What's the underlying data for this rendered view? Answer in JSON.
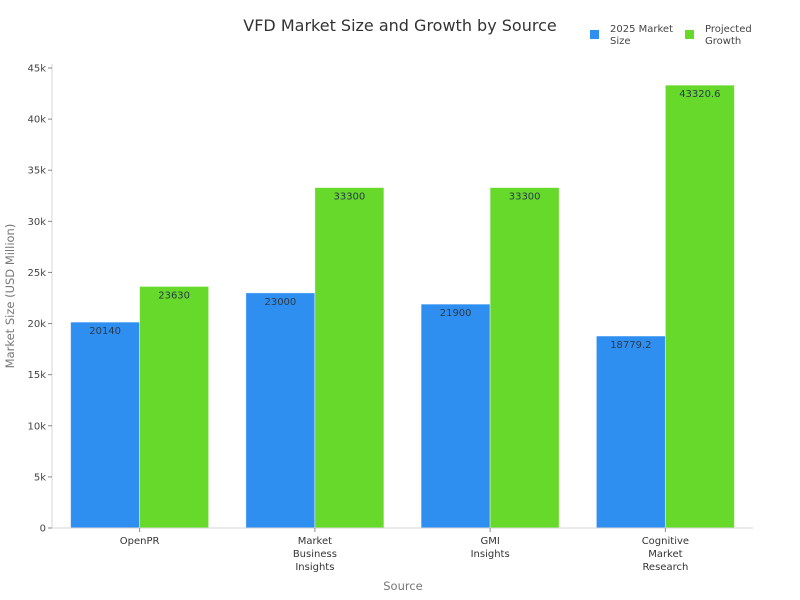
{
  "chart_data": {
    "type": "bar",
    "title": "VFD Market Size and Growth by Source",
    "xlabel": "Source",
    "ylabel": "Market Size (USD Million)",
    "ylim": [
      0,
      45000
    ],
    "yticks": [
      0,
      5000,
      10000,
      15000,
      20000,
      25000,
      30000,
      35000,
      40000,
      45000
    ],
    "ytick_labels": [
      "0",
      "5k",
      "10k",
      "15k",
      "20k",
      "25k",
      "30k",
      "35k",
      "40k",
      "45k"
    ],
    "categories": [
      [
        "OpenPR"
      ],
      [
        "Market",
        "Business",
        "Insights"
      ],
      [
        "GMI",
        "Insights"
      ],
      [
        "Cognitive",
        "Market",
        "Research"
      ]
    ],
    "series": [
      {
        "name": "2025 Market Size",
        "legend_lines": [
          "2025 Market",
          "Size"
        ],
        "color": "#2f8ff0",
        "values": [
          20140,
          23000,
          21900,
          18779.2
        ],
        "labels": [
          "20140",
          "23000",
          "21900",
          "18779.2"
        ]
      },
      {
        "name": "Projected Growth",
        "legend_lines": [
          "Projected",
          "Growth"
        ],
        "color": "#66d92a",
        "values": [
          23630,
          33300,
          33300,
          43320.6
        ],
        "labels": [
          "23630",
          "33300",
          "33300",
          "43320.6"
        ]
      }
    ],
    "grid": false,
    "legend_position": "top-right"
  }
}
